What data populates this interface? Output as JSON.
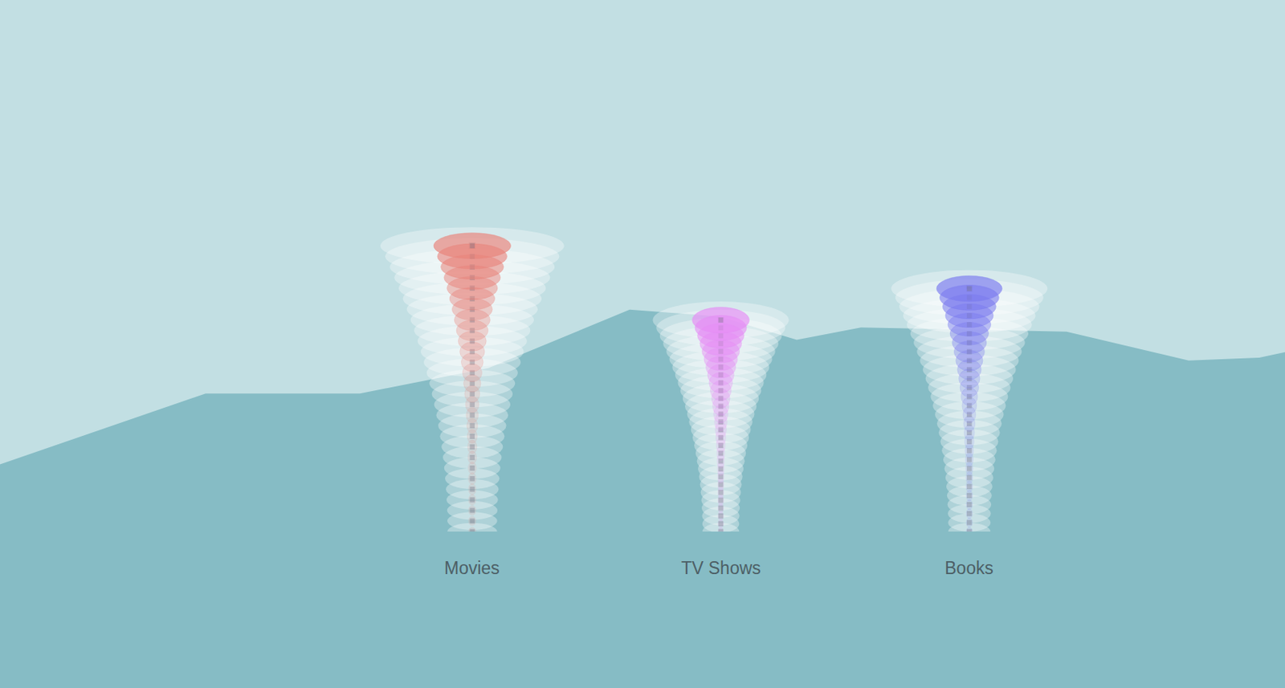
{
  "chart_data": {
    "type": "tornado",
    "categories": [
      "Movies",
      "TV Shows",
      "Books"
    ],
    "values": [
      100,
      74,
      85
    ],
    "colors": [
      "#e8837b",
      "#e58cf5",
      "#7b7bef"
    ],
    "ylim": [
      0,
      186
    ],
    "tick_labels": false
  }
}
